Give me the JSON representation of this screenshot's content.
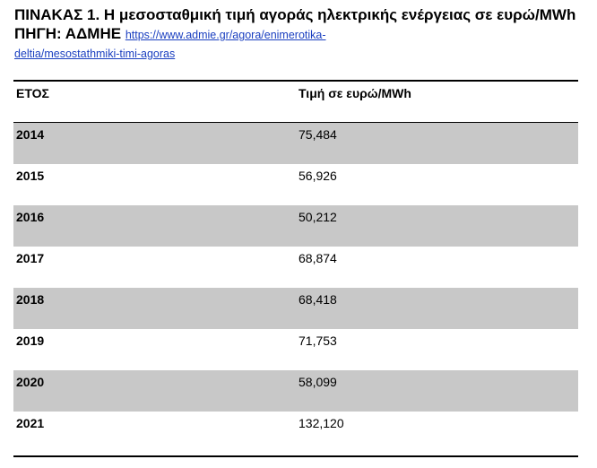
{
  "caption": {
    "title": "ΠΙΝΑΚΑΣ 1. Η μεσοσταθμική τιμή αγοράς ηλεκτρικής ενέργειας σε ευρώ/MWh ΠΗΓΗ: ΑΔΜΗΕ",
    "link_line1": "https://www.admie.gr/agora/enimerotika-",
    "link_line2": "deltia/mesostathmiki-timi-agoras"
  },
  "table": {
    "headers": {
      "year": "ΕΤΟΣ",
      "price": "Τιμή σε ευρώ/MWh"
    },
    "rows": [
      {
        "year": "2014",
        "price": "75,484",
        "shaded": true
      },
      {
        "year": "2015",
        "price": "56,926",
        "shaded": false
      },
      {
        "year": "2016",
        "price": "50,212",
        "shaded": true
      },
      {
        "year": "2017",
        "price": "68,874",
        "shaded": false
      },
      {
        "year": "2018",
        "price": "68,418",
        "shaded": true
      },
      {
        "year": "2019",
        "price": "71,753",
        "shaded": false
      },
      {
        "year": "2020",
        "price": "58,099",
        "shaded": true
      },
      {
        "year": "2021",
        "price": "132,120",
        "shaded": false
      }
    ],
    "shade_color": "#c8c8c8",
    "link_color": "#1a3fc0"
  }
}
